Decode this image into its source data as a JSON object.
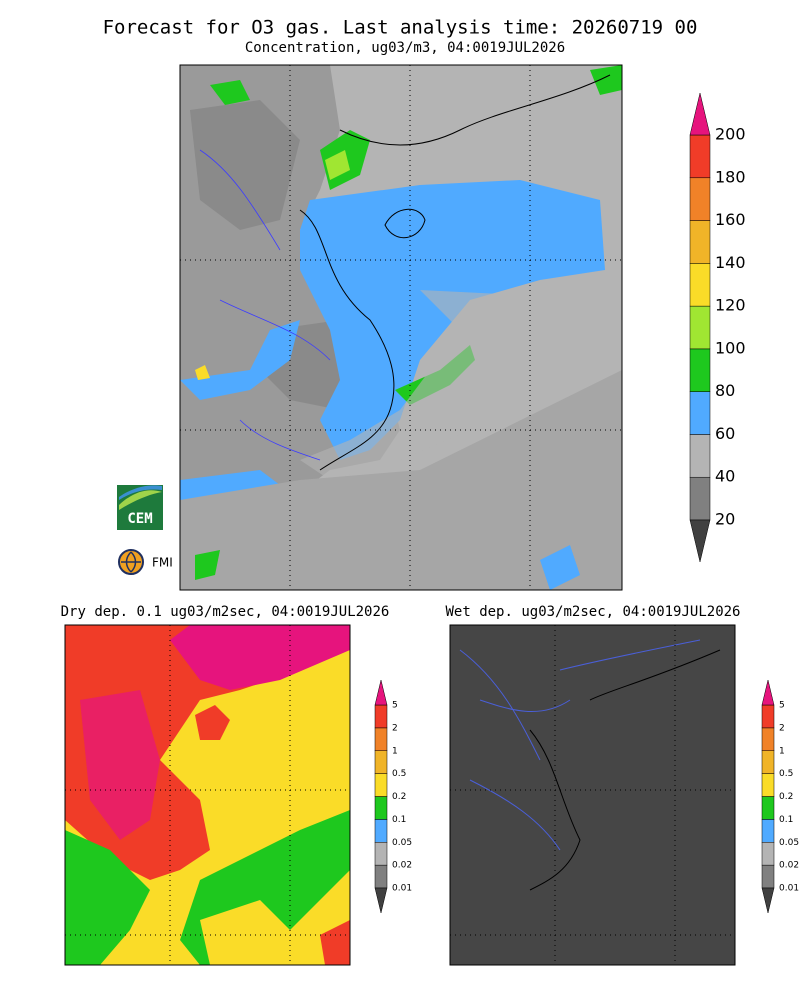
{
  "header": {
    "title": "Forecast for O3 gas. Last analysis time: 20260719 00",
    "subtitle": "Concentration, ug03/m3, 04:0019JUL2026"
  },
  "main_colorbar": {
    "labels": [
      20,
      40,
      60,
      80,
      100,
      120,
      140,
      160,
      180,
      200
    ],
    "colors": [
      "#808080",
      "#b4b4b4",
      "#50aaff",
      "#1ec81e",
      "#a0e632",
      "#fadc28",
      "#f0b428",
      "#f08228",
      "#f03c28"
    ],
    "under_color": "#404040",
    "over_color": "#e6147d"
  },
  "panels": [
    {
      "title": "Dry dep. 0.1 ug03/m2sec, 04:0019JUL2026",
      "colorbar": {
        "labels": [
          0.01,
          0.02,
          0.05,
          0.1,
          0.2,
          0.5,
          1,
          2,
          5
        ],
        "colors": [
          "#808080",
          "#b4b4b4",
          "#50aaff",
          "#1ec81e",
          "#fadc28",
          "#f0b428",
          "#f08228",
          "#f03c28"
        ],
        "under_color": "#404040",
        "over_color": "#e6147d"
      }
    },
    {
      "title": "Wet dep. ug03/m2sec, 04:0019JUL2026",
      "colorbar": {
        "labels": [
          0.01,
          0.02,
          0.05,
          0.1,
          0.2,
          0.5,
          1,
          2,
          5
        ],
        "colors": [
          "#808080",
          "#b4b4b4",
          "#50aaff",
          "#1ec81e",
          "#fadc28",
          "#f0b428",
          "#f08228",
          "#f03c28"
        ],
        "under_color": "#404040",
        "over_color": "#e6147d"
      }
    }
  ],
  "logos": {
    "cem": "CEM",
    "fmi": "FMI"
  }
}
